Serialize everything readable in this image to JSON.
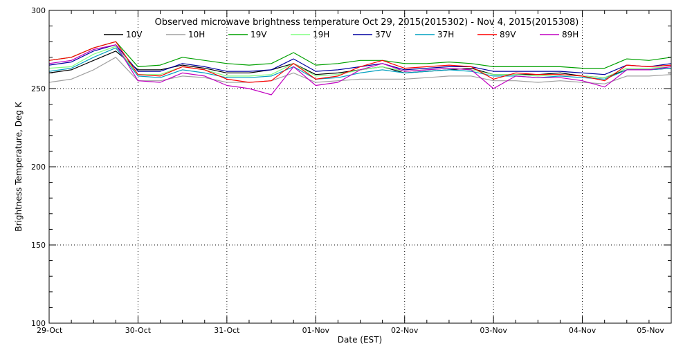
{
  "chart_data": {
    "type": "line",
    "title": "Observed microwave brightness temperature Oct 29, 2015(2015302) - Nov  4, 2015(2015308)",
    "xlabel": "Date (EST)",
    "ylabel": "Brightness Temperature, Deg K",
    "ylim": [
      100,
      300
    ],
    "yticks": [
      100,
      150,
      200,
      250,
      300
    ],
    "xlim": [
      "2015-10-29",
      "2015-11-05"
    ],
    "xtick_labels": [
      "29-Oct",
      "30-Oct",
      "31-Oct",
      "01-Nov",
      "02-Nov",
      "03-Nov",
      "04-Nov",
      "05-Nov"
    ],
    "grid": true,
    "legend_position": "top",
    "series": [
      {
        "name": "10V",
        "color": "#000000",
        "x": [
          "2015-10-29 00:00",
          "2015-10-29 06:00",
          "2015-10-29 12:00",
          "2015-10-29 18:00",
          "2015-10-30 00:00",
          "2015-10-30 06:00",
          "2015-10-30 12:00",
          "2015-10-30 18:00",
          "2015-10-31 00:00",
          "2015-10-31 06:00",
          "2015-10-31 12:00",
          "2015-10-31 18:00",
          "2015-11-01 00:00",
          "2015-11-01 06:00",
          "2015-11-01 12:00",
          "2015-11-01 18:00",
          "2015-11-02 00:00",
          "2015-11-02 06:00",
          "2015-11-02 12:00",
          "2015-11-02 18:00",
          "2015-11-03 00:00",
          "2015-11-03 06:00",
          "2015-11-03 12:00",
          "2015-11-03 18:00",
          "2015-11-04 00:00",
          "2015-11-04 06:00",
          "2015-11-04 12:00",
          "2015-11-04 18:00",
          "2015-11-05 00:00"
        ],
        "y": [
          260,
          262,
          268,
          274,
          262,
          262,
          265,
          263,
          260,
          260,
          262,
          266,
          259,
          260,
          262,
          264,
          260,
          261,
          262,
          263,
          259,
          259,
          259,
          260,
          258,
          257,
          262,
          262,
          263
        ]
      },
      {
        "name": "10H",
        "color": "#a0a0a0",
        "x": [
          "2015-10-29 00:00",
          "2015-10-29 06:00",
          "2015-10-29 12:00",
          "2015-10-29 18:00",
          "2015-10-30 00:00",
          "2015-10-30 06:00",
          "2015-10-30 12:00",
          "2015-10-30 18:00",
          "2015-10-31 00:00",
          "2015-10-31 06:00",
          "2015-10-31 12:00",
          "2015-10-31 18:00",
          "2015-11-01 00:00",
          "2015-11-01 06:00",
          "2015-11-01 12:00",
          "2015-11-01 18:00",
          "2015-11-02 00:00",
          "2015-11-02 06:00",
          "2015-11-02 12:00",
          "2015-11-02 18:00",
          "2015-11-03 00:00",
          "2015-11-03 06:00",
          "2015-11-03 12:00",
          "2015-11-03 18:00",
          "2015-11-04 00:00",
          "2015-11-04 06:00",
          "2015-11-04 12:00",
          "2015-11-04 18:00",
          "2015-11-05 00:00"
        ],
        "y": [
          254,
          256,
          262,
          270,
          255,
          255,
          258,
          257,
          254,
          254,
          255,
          260,
          254,
          255,
          256,
          256,
          256,
          257,
          258,
          258,
          255,
          255,
          254,
          255,
          254,
          253,
          258,
          258,
          259
        ]
      },
      {
        "name": "19V",
        "color": "#00a000",
        "x": [
          "2015-10-29 00:00",
          "2015-10-29 06:00",
          "2015-10-29 12:00",
          "2015-10-29 18:00",
          "2015-10-30 00:00",
          "2015-10-30 06:00",
          "2015-10-30 12:00",
          "2015-10-30 18:00",
          "2015-10-31 00:00",
          "2015-10-31 06:00",
          "2015-10-31 12:00",
          "2015-10-31 18:00",
          "2015-11-01 00:00",
          "2015-11-01 06:00",
          "2015-11-01 12:00",
          "2015-11-01 18:00",
          "2015-11-02 00:00",
          "2015-11-02 06:00",
          "2015-11-02 12:00",
          "2015-11-02 18:00",
          "2015-11-03 00:00",
          "2015-11-03 06:00",
          "2015-11-03 12:00",
          "2015-11-03 18:00",
          "2015-11-04 00:00",
          "2015-11-04 06:00",
          "2015-11-04 12:00",
          "2015-11-04 18:00",
          "2015-11-05 00:00"
        ],
        "y": [
          268,
          270,
          276,
          280,
          264,
          265,
          270,
          268,
          266,
          265,
          266,
          273,
          265,
          266,
          268,
          268,
          266,
          266,
          267,
          266,
          264,
          264,
          264,
          264,
          263,
          263,
          269,
          268,
          270
        ]
      },
      {
        "name": "19H",
        "color": "#80ff80",
        "x": [
          "2015-10-29 00:00",
          "2015-10-29 06:00",
          "2015-10-29 12:00",
          "2015-10-29 18:00",
          "2015-10-30 00:00",
          "2015-10-30 06:00",
          "2015-10-30 12:00",
          "2015-10-30 18:00",
          "2015-10-31 00:00",
          "2015-10-31 06:00",
          "2015-10-31 12:00",
          "2015-10-31 18:00",
          "2015-11-01 00:00",
          "2015-11-01 06:00",
          "2015-11-01 12:00",
          "2015-11-01 18:00",
          "2015-11-02 00:00",
          "2015-11-02 06:00",
          "2015-11-02 12:00",
          "2015-11-02 18:00",
          "2015-11-03 00:00",
          "2015-11-03 06:00",
          "2015-11-03 12:00",
          "2015-11-03 18:00",
          "2015-11-04 00:00",
          "2015-11-04 06:00",
          "2015-11-04 12:00",
          "2015-11-04 18:00",
          "2015-11-05 00:00"
        ],
        "y": [
          263,
          264,
          272,
          277,
          259,
          259,
          264,
          262,
          258,
          258,
          259,
          266,
          258,
          259,
          262,
          264,
          261,
          262,
          263,
          262,
          259,
          259,
          258,
          259,
          258,
          257,
          263,
          263,
          264
        ]
      },
      {
        "name": "37V",
        "color": "#0000a0",
        "x": [
          "2015-10-29 00:00",
          "2015-10-29 06:00",
          "2015-10-29 12:00",
          "2015-10-29 18:00",
          "2015-10-30 00:00",
          "2015-10-30 06:00",
          "2015-10-30 12:00",
          "2015-10-30 18:00",
          "2015-10-31 00:00",
          "2015-10-31 06:00",
          "2015-10-31 12:00",
          "2015-10-31 18:00",
          "2015-11-01 00:00",
          "2015-11-01 06:00",
          "2015-11-01 12:00",
          "2015-11-01 18:00",
          "2015-11-02 00:00",
          "2015-11-02 06:00",
          "2015-11-02 12:00",
          "2015-11-02 18:00",
          "2015-11-03 00:00",
          "2015-11-03 06:00",
          "2015-11-03 12:00",
          "2015-11-03 18:00",
          "2015-11-04 00:00",
          "2015-11-04 06:00",
          "2015-11-04 12:00",
          "2015-11-04 18:00",
          "2015-11-05 00:00"
        ],
        "y": [
          265,
          267,
          274,
          278,
          261,
          261,
          266,
          264,
          261,
          261,
          262,
          269,
          261,
          262,
          264,
          266,
          262,
          263,
          264,
          264,
          261,
          261,
          261,
          261,
          260,
          259,
          265,
          264,
          266
        ]
      },
      {
        "name": "37H",
        "color": "#00a0c0",
        "x": [
          "2015-10-29 00:00",
          "2015-10-29 06:00",
          "2015-10-29 12:00",
          "2015-10-29 18:00",
          "2015-10-30 00:00",
          "2015-10-30 06:00",
          "2015-10-30 12:00",
          "2015-10-30 18:00",
          "2015-10-31 00:00",
          "2015-10-31 06:00",
          "2015-10-31 12:00",
          "2015-10-31 18:00",
          "2015-11-01 00:00",
          "2015-11-01 06:00",
          "2015-11-01 12:00",
          "2015-11-01 18:00",
          "2015-11-02 00:00",
          "2015-11-02 06:00",
          "2015-11-02 12:00",
          "2015-11-02 18:00",
          "2015-11-03 00:00",
          "2015-11-03 06:00",
          "2015-11-03 12:00",
          "2015-11-03 18:00",
          "2015-11-04 00:00",
          "2015-11-04 06:00",
          "2015-11-04 12:00",
          "2015-11-04 18:00",
          "2015-11-05 00:00"
        ],
        "y": [
          261,
          263,
          270,
          276,
          258,
          257,
          262,
          260,
          257,
          257,
          258,
          264,
          256,
          257,
          260,
          262,
          260,
          261,
          262,
          261,
          258,
          258,
          257,
          258,
          257,
          256,
          262,
          262,
          263
        ]
      },
      {
        "name": "89V",
        "color": "#ff0000",
        "x": [
          "2015-10-29 00:00",
          "2015-10-29 06:00",
          "2015-10-29 12:00",
          "2015-10-29 18:00",
          "2015-10-30 00:00",
          "2015-10-30 06:00",
          "2015-10-30 12:00",
          "2015-10-30 18:00",
          "2015-10-31 00:00",
          "2015-10-31 06:00",
          "2015-10-31 12:00",
          "2015-10-31 18:00",
          "2015-11-01 00:00",
          "2015-11-01 06:00",
          "2015-11-01 12:00",
          "2015-11-01 18:00",
          "2015-11-02 00:00",
          "2015-11-02 06:00",
          "2015-11-02 12:00",
          "2015-11-02 18:00",
          "2015-11-03 00:00",
          "2015-11-03 06:00",
          "2015-11-03 12:00",
          "2015-11-03 18:00",
          "2015-11-04 00:00",
          "2015-11-04 06:00",
          "2015-11-04 12:00",
          "2015-11-04 18:00",
          "2015-11-05 00:00"
        ],
        "y": [
          268,
          270,
          276,
          280,
          259,
          258,
          264,
          262,
          256,
          254,
          255,
          266,
          256,
          258,
          264,
          268,
          263,
          264,
          265,
          264,
          256,
          260,
          259,
          259,
          258,
          255,
          265,
          264,
          265
        ]
      },
      {
        "name": "89H",
        "color": "#c000c0",
        "x": [
          "2015-10-29 00:00",
          "2015-10-29 06:00",
          "2015-10-29 12:00",
          "2015-10-29 18:00",
          "2015-10-30 00:00",
          "2015-10-30 06:00",
          "2015-10-30 12:00",
          "2015-10-30 18:00",
          "2015-10-31 00:00",
          "2015-10-31 06:00",
          "2015-10-31 12:00",
          "2015-10-31 18:00",
          "2015-11-01 00:00",
          "2015-11-01 06:00",
          "2015-11-01 12:00",
          "2015-11-01 18:00",
          "2015-11-02 00:00",
          "2015-11-02 06:00",
          "2015-11-02 12:00",
          "2015-11-02 18:00",
          "2015-11-03 00:00",
          "2015-11-03 06:00",
          "2015-11-03 12:00",
          "2015-11-03 18:00",
          "2015-11-04 00:00",
          "2015-11-04 06:00",
          "2015-11-04 12:00",
          "2015-11-04 18:00",
          "2015-11-05 00:00"
        ],
        "y": [
          266,
          268,
          275,
          278,
          255,
          254,
          260,
          258,
          252,
          250,
          246,
          264,
          252,
          254,
          262,
          266,
          261,
          262,
          263,
          262,
          250,
          258,
          257,
          257,
          255,
          251,
          262,
          262,
          264
        ]
      }
    ]
  }
}
